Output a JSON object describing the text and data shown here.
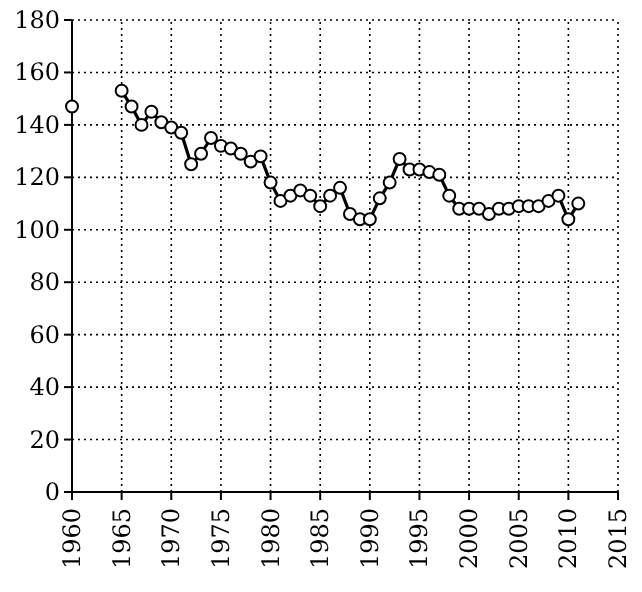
{
  "chart_data": {
    "type": "line",
    "x": [
      1960,
      1961,
      1962,
      1963,
      1964,
      1965,
      1966,
      1967,
      1968,
      1969,
      1970,
      1971,
      1972,
      1973,
      1974,
      1975,
      1976,
      1977,
      1978,
      1979,
      1980,
      1981,
      1982,
      1983,
      1984,
      1985,
      1986,
      1987,
      1988,
      1989,
      1990,
      1991,
      1992,
      1993,
      1994,
      1995,
      1996,
      1997,
      1998,
      1999,
      2000,
      2001,
      2002,
      2003,
      2004,
      2005,
      2006,
      2007,
      2008,
      2009,
      2010,
      2011
    ],
    "series": [
      {
        "color": "#000000",
        "values": [
          147,
          null,
          null,
          null,
          null,
          153,
          147,
          140,
          145,
          141,
          139,
          137,
          125,
          129,
          135,
          132,
          131,
          129,
          126,
          128,
          118,
          111,
          113,
          115,
          113,
          109,
          113,
          116,
          106,
          104,
          104,
          112,
          118,
          127,
          123,
          123,
          122,
          121,
          113,
          108,
          108,
          108,
          106,
          108,
          108,
          109,
          109,
          109,
          111,
          113,
          104,
          110
        ]
      }
    ],
    "xlim": [
      1960,
      2015
    ],
    "xticks": [
      1960,
      1965,
      1970,
      1975,
      1980,
      1985,
      1990,
      1995,
      2000,
      2005,
      2010,
      2015
    ],
    "ylim": [
      0,
      180
    ],
    "yticks": [
      0,
      20,
      40,
      60,
      80,
      100,
      120,
      140,
      160,
      180
    ],
    "grid": true,
    "marker": "circle",
    "line_style": "solid"
  }
}
